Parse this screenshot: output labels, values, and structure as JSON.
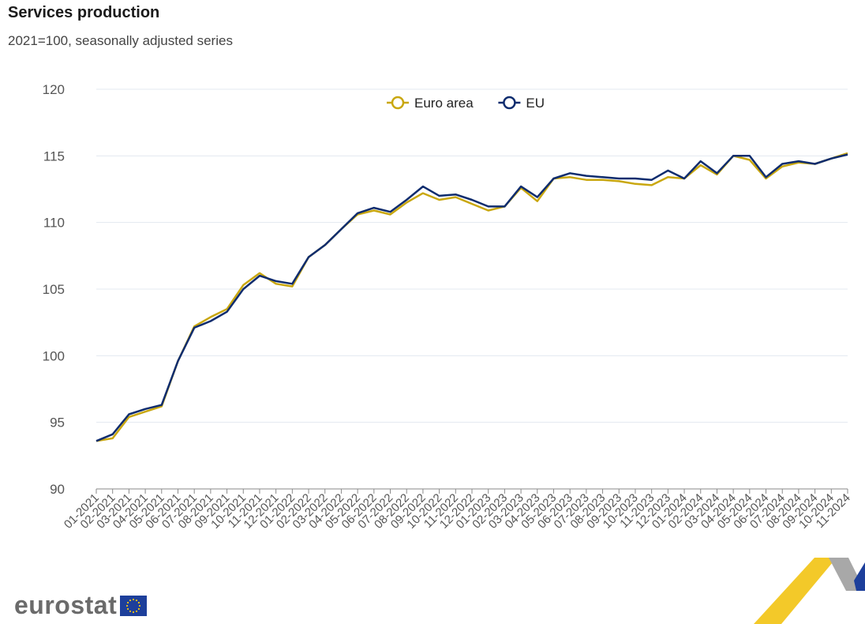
{
  "title": "Services production",
  "subtitle": "2021=100, seasonally adjusted series",
  "brand": "eurostat",
  "chart_data": {
    "type": "line",
    "title": "Services production",
    "subtitle": "2021=100, seasonally adjusted series",
    "xlabel": "",
    "ylabel": "",
    "ylim": [
      90,
      120
    ],
    "yticks": [
      "120",
      "115",
      "110",
      "105",
      "100",
      "95",
      "90"
    ],
    "grid": true,
    "legend_position": "top-center",
    "categories": [
      "01-2021",
      "02-2021",
      "03-2021",
      "04-2021",
      "05-2021",
      "06-2021",
      "07-2021",
      "08-2021",
      "09-2021",
      "10-2021",
      "11-2021",
      "12-2021",
      "01-2022",
      "02-2022",
      "03-2022",
      "04-2022",
      "05-2022",
      "06-2022",
      "07-2022",
      "08-2022",
      "09-2022",
      "10-2022",
      "11-2022",
      "12-2022",
      "01-2023",
      "02-2023",
      "03-2023",
      "04-2023",
      "05-2023",
      "06-2023",
      "07-2023",
      "08-2023",
      "09-2023",
      "10-2023",
      "11-2023",
      "12-2023",
      "01-2024",
      "02-2024",
      "03-2024",
      "04-2024",
      "05-2024",
      "06-2024",
      "07-2024",
      "08-2024",
      "09-2024",
      "10-2024",
      "11-2024"
    ],
    "series": [
      {
        "name": "Euro area",
        "color": "#c9a70f",
        "values": [
          93.6,
          93.8,
          95.4,
          95.8,
          96.2,
          99.6,
          102.2,
          102.9,
          103.5,
          105.3,
          106.2,
          105.4,
          105.2,
          107.4,
          108.3,
          109.5,
          110.6,
          110.9,
          110.6,
          111.5,
          112.2,
          111.7,
          111.9,
          111.4,
          110.9,
          111.2,
          112.6,
          111.6,
          113.3,
          113.4,
          113.2,
          113.2,
          113.1,
          112.9,
          112.8,
          113.4,
          113.3,
          114.3,
          113.6,
          115.0,
          114.7,
          113.3,
          114.2,
          114.5,
          114.4,
          114.8,
          115.2
        ]
      },
      {
        "name": "EU",
        "color": "#0e2c6e",
        "values": [
          93.6,
          94.1,
          95.6,
          96.0,
          96.3,
          99.6,
          102.1,
          102.6,
          103.3,
          105.0,
          106.0,
          105.6,
          105.4,
          107.4,
          108.3,
          109.5,
          110.7,
          111.1,
          110.8,
          111.7,
          112.7,
          112.0,
          112.1,
          111.7,
          111.2,
          111.2,
          112.7,
          111.9,
          113.3,
          113.7,
          113.5,
          113.4,
          113.3,
          113.3,
          113.2,
          113.9,
          113.3,
          114.6,
          113.7,
          115.0,
          115.0,
          113.4,
          114.4,
          114.6,
          114.4,
          114.8,
          115.1
        ]
      }
    ]
  }
}
